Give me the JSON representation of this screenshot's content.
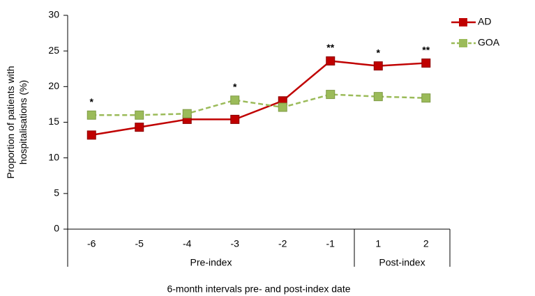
{
  "chart_data": {
    "type": "line",
    "ylabel": [
      "Proportion of patients with",
      "hospitalisations (%)"
    ],
    "xlabel": "6-month intervals pre- and post-index date",
    "categories": [
      "-6",
      "-5",
      "-4",
      "-3",
      "-2",
      "-1",
      "1",
      "2"
    ],
    "groups": [
      {
        "label": "Pre-index",
        "categories": [
          "-6",
          "-5",
          "-4",
          "-3",
          "-2",
          "-1"
        ]
      },
      {
        "label": "Post-index",
        "categories": [
          "1",
          "2"
        ]
      }
    ],
    "series": [
      {
        "name": "AD",
        "color": "#c00000",
        "dashed": false,
        "values": [
          13.2,
          14.3,
          15.4,
          15.4,
          18.0,
          23.6,
          22.9,
          23.3
        ]
      },
      {
        "name": "GOA",
        "color": "#9bbb59",
        "dashed": true,
        "values": [
          16.0,
          16.0,
          16.2,
          18.1,
          17.1,
          18.9,
          18.6,
          18.4
        ]
      }
    ],
    "annotations": [
      {
        "category": "-6",
        "text": "*"
      },
      {
        "category": "-3",
        "text": "*"
      },
      {
        "category": "-1",
        "text": "**"
      },
      {
        "category": "1",
        "text": "*"
      },
      {
        "category": "2",
        "text": "**"
      }
    ],
    "ylim": [
      0,
      30
    ],
    "yticks": [
      0,
      5,
      10,
      15,
      20,
      25,
      30
    ],
    "legend": "top-right"
  }
}
